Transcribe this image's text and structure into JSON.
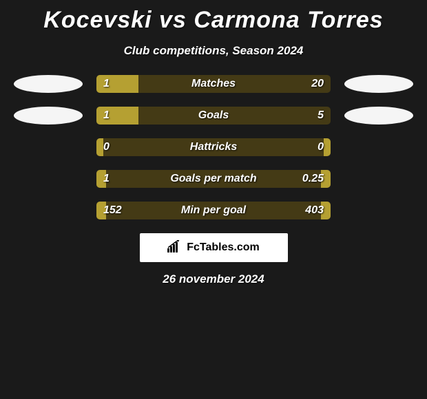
{
  "title": "Kocevski vs Carmona Torres",
  "subtitle": "Club competitions, Season 2024",
  "date": "26 november 2024",
  "logo_text": "FcTables.com",
  "colors": {
    "background": "#1a1a1a",
    "bar_filled": "#b5a032",
    "bar_empty": "#443a15",
    "badge": "#f5f5f5",
    "text": "#ffffff",
    "logo_bg": "#ffffff",
    "logo_text": "#000000"
  },
  "stats": [
    {
      "label": "Matches",
      "left_value": "1",
      "right_value": "20",
      "left_pct": 18,
      "right_pct": 0,
      "show_left_badge": true,
      "show_right_badge": true
    },
    {
      "label": "Goals",
      "left_value": "1",
      "right_value": "5",
      "left_pct": 18,
      "right_pct": 0,
      "show_left_badge": true,
      "show_right_badge": true
    },
    {
      "label": "Hattricks",
      "left_value": "0",
      "right_value": "0",
      "left_pct": 3,
      "right_pct": 3,
      "show_left_badge": false,
      "show_right_badge": false
    },
    {
      "label": "Goals per match",
      "left_value": "1",
      "right_value": "0.25",
      "left_pct": 4,
      "right_pct": 4,
      "show_left_badge": false,
      "show_right_badge": false
    },
    {
      "label": "Min per goal",
      "left_value": "152",
      "right_value": "403",
      "left_pct": 4,
      "right_pct": 4,
      "show_left_badge": false,
      "show_right_badge": false
    }
  ]
}
